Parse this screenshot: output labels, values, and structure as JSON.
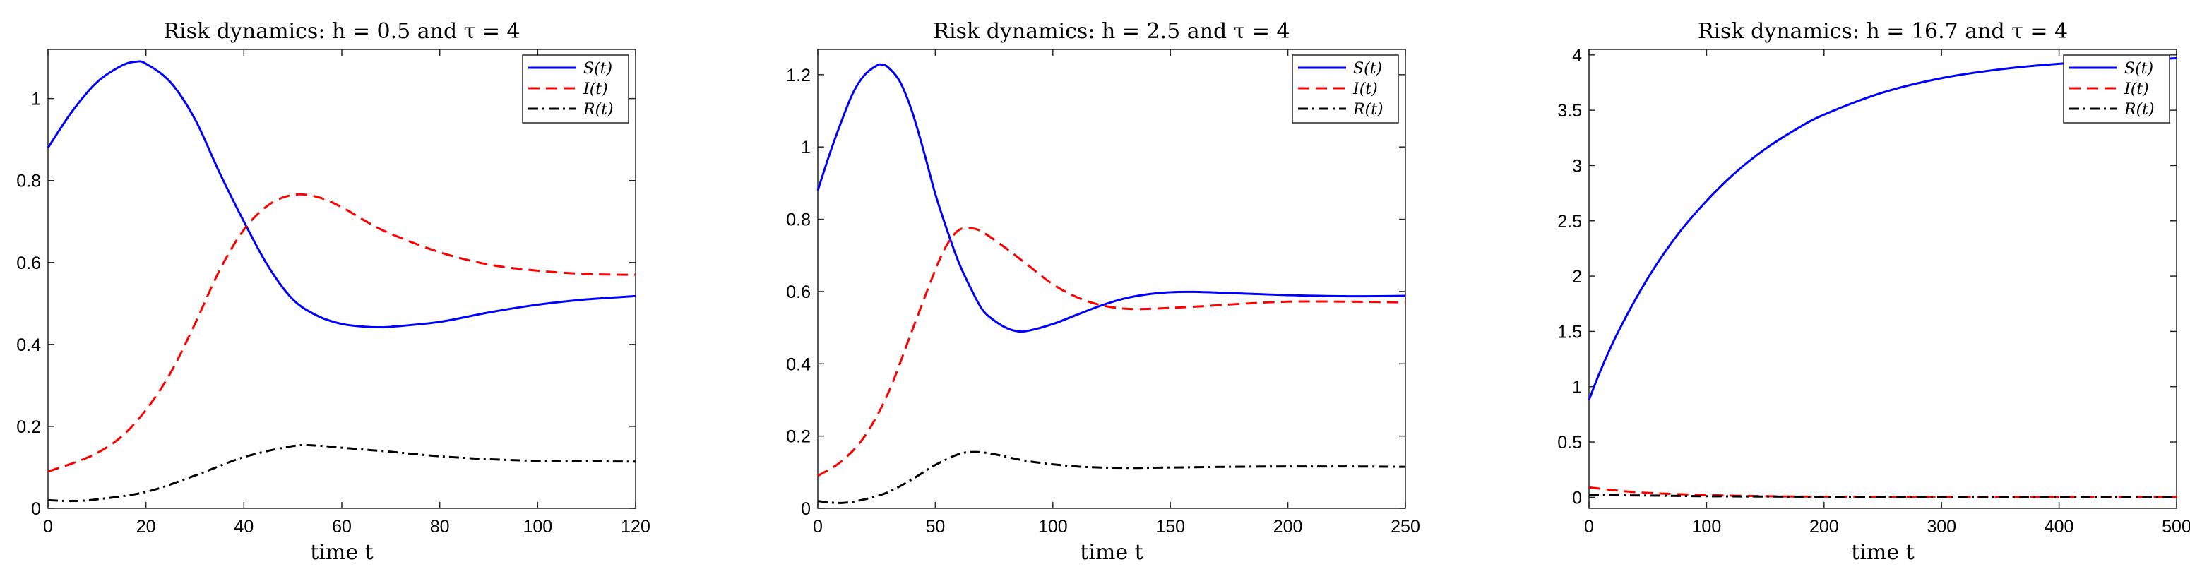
{
  "chart_data": [
    {
      "type": "line",
      "title": "Risk dynamics: h = 0.5 and τ = 4",
      "xlabel": "time t",
      "ylabel": "",
      "xlim": [
        0,
        120
      ],
      "ylim": [
        0,
        1.12
      ],
      "xticks": [
        0,
        20,
        40,
        60,
        80,
        100,
        120
      ],
      "yticks": [
        0,
        0.2,
        0.4,
        0.6,
        0.8,
        1
      ],
      "xtick_labels": [
        "0",
        "20",
        "40",
        "60",
        "80",
        "100",
        "120"
      ],
      "ytick_labels": [
        "0",
        "0.2",
        "0.4",
        "0.6",
        "0.8",
        "1"
      ],
      "legend_position": "top-right",
      "series": [
        {
          "name": "S(t)",
          "color": "#0000ff",
          "style": "solid",
          "x": [
            0,
            5,
            10,
            15,
            18,
            20,
            25,
            30,
            35,
            40,
            45,
            50,
            55,
            60,
            65,
            68,
            70,
            80,
            90,
            100,
            110,
            120
          ],
          "y": [
            0.88,
            0.97,
            1.04,
            1.08,
            1.09,
            1.085,
            1.04,
            0.95,
            0.82,
            0.7,
            0.59,
            0.51,
            0.47,
            0.45,
            0.443,
            0.442,
            0.443,
            0.455,
            0.478,
            0.497,
            0.51,
            0.518
          ]
        },
        {
          "name": "I(t)",
          "color": "#ff0000",
          "style": "dashed",
          "x": [
            0,
            5,
            10,
            15,
            20,
            25,
            30,
            35,
            40,
            45,
            50,
            55,
            60,
            65,
            70,
            80,
            90,
            100,
            110,
            120
          ],
          "y": [
            0.09,
            0.11,
            0.135,
            0.175,
            0.24,
            0.33,
            0.45,
            0.58,
            0.68,
            0.74,
            0.765,
            0.76,
            0.735,
            0.7,
            0.67,
            0.625,
            0.595,
            0.58,
            0.572,
            0.57
          ]
        },
        {
          "name": "R(t)",
          "color": "#000000",
          "style": "dashdot",
          "x": [
            0,
            5,
            10,
            20,
            30,
            40,
            50,
            55,
            60,
            70,
            80,
            90,
            100,
            110,
            120
          ],
          "y": [
            0.02,
            0.018,
            0.022,
            0.04,
            0.08,
            0.125,
            0.152,
            0.153,
            0.148,
            0.138,
            0.127,
            0.12,
            0.116,
            0.115,
            0.114
          ]
        }
      ]
    },
    {
      "type": "line",
      "title": "Risk dynamics: h = 2.5 and τ = 4",
      "xlabel": "time t",
      "ylabel": "",
      "xlim": [
        0,
        250
      ],
      "ylim": [
        0,
        1.27
      ],
      "xticks": [
        0,
        50,
        100,
        150,
        200,
        250
      ],
      "yticks": [
        0,
        0.2,
        0.4,
        0.6,
        0.8,
        1,
        1.2
      ],
      "xtick_labels": [
        "0",
        "50",
        "100",
        "150",
        "200",
        "250"
      ],
      "ytick_labels": [
        "0",
        "0.2",
        "0.4",
        "0.6",
        "0.8",
        "1",
        "1.2"
      ],
      "legend_position": "top-right",
      "series": [
        {
          "name": "S(t)",
          "color": "#0000ff",
          "style": "solid",
          "x": [
            0,
            5,
            10,
            15,
            20,
            25,
            27,
            30,
            35,
            40,
            45,
            50,
            55,
            60,
            65,
            70,
            75,
            80,
            85,
            90,
            100,
            110,
            120,
            130,
            140,
            150,
            160,
            175,
            200,
            225,
            250
          ],
          "y": [
            0.88,
            0.98,
            1.07,
            1.15,
            1.2,
            1.225,
            1.228,
            1.22,
            1.18,
            1.1,
            0.99,
            0.87,
            0.77,
            0.68,
            0.61,
            0.55,
            0.52,
            0.5,
            0.49,
            0.492,
            0.51,
            0.535,
            0.56,
            0.58,
            0.592,
            0.598,
            0.599,
            0.596,
            0.59,
            0.587,
            0.588
          ]
        },
        {
          "name": "I(t)",
          "color": "#ff0000",
          "style": "dashed",
          "x": [
            0,
            10,
            20,
            30,
            40,
            50,
            55,
            60,
            65,
            70,
            80,
            90,
            100,
            110,
            120,
            130,
            140,
            160,
            180,
            200,
            225,
            250
          ],
          "y": [
            0.09,
            0.13,
            0.2,
            0.32,
            0.49,
            0.66,
            0.73,
            0.77,
            0.775,
            0.765,
            0.72,
            0.67,
            0.62,
            0.585,
            0.563,
            0.553,
            0.552,
            0.558,
            0.566,
            0.572,
            0.572,
            0.57
          ]
        },
        {
          "name": "R(t)",
          "color": "#000000",
          "style": "dashdot",
          "x": [
            0,
            10,
            20,
            30,
            40,
            50,
            60,
            67,
            75,
            90,
            110,
            130,
            150,
            175,
            200,
            225,
            250
          ],
          "y": [
            0.02,
            0.015,
            0.025,
            0.045,
            0.08,
            0.12,
            0.15,
            0.156,
            0.15,
            0.13,
            0.116,
            0.112,
            0.113,
            0.115,
            0.116,
            0.116,
            0.115
          ]
        }
      ]
    },
    {
      "type": "line",
      "title": "Risk dynamics: h = 16.7 and τ = 4",
      "xlabel": "time t",
      "ylabel": "",
      "xlim": [
        0,
        500
      ],
      "ylim": [
        -0.1,
        4.05
      ],
      "xticks": [
        0,
        100,
        200,
        300,
        400,
        500
      ],
      "yticks": [
        0,
        0.5,
        1,
        1.5,
        2,
        2.5,
        3,
        3.5,
        4
      ],
      "xtick_labels": [
        "0",
        "100",
        "200",
        "300",
        "400",
        "500"
      ],
      "ytick_labels": [
        "0",
        "0.5",
        "1",
        "1.5",
        "2",
        "2.5",
        "3",
        "3.5",
        "4"
      ],
      "legend_position": "top-right",
      "series": [
        {
          "name": "S(t)",
          "color": "#0000ff",
          "style": "solid",
          "x": [
            0,
            10,
            25,
            50,
            75,
            100,
            125,
            150,
            175,
            200,
            250,
            300,
            350,
            400,
            450,
            500
          ],
          "y": [
            0.88,
            1.15,
            1.5,
            1.98,
            2.37,
            2.68,
            2.94,
            3.15,
            3.32,
            3.46,
            3.66,
            3.79,
            3.87,
            3.92,
            3.945,
            3.97
          ]
        },
        {
          "name": "I(t)",
          "color": "#ff0000",
          "style": "dashed",
          "x": [
            0,
            25,
            50,
            100,
            150,
            200,
            300,
            400,
            500
          ],
          "y": [
            0.09,
            0.06,
            0.04,
            0.02,
            0.01,
            0.006,
            0.004,
            0.003,
            0.003
          ]
        },
        {
          "name": "R(t)",
          "color": "#000000",
          "style": "dashdot",
          "x": [
            0,
            50,
            100,
            200,
            300,
            400,
            500
          ],
          "y": [
            0.02,
            0.016,
            0.01,
            0.005,
            0.003,
            0.002,
            0.002
          ]
        }
      ]
    }
  ]
}
